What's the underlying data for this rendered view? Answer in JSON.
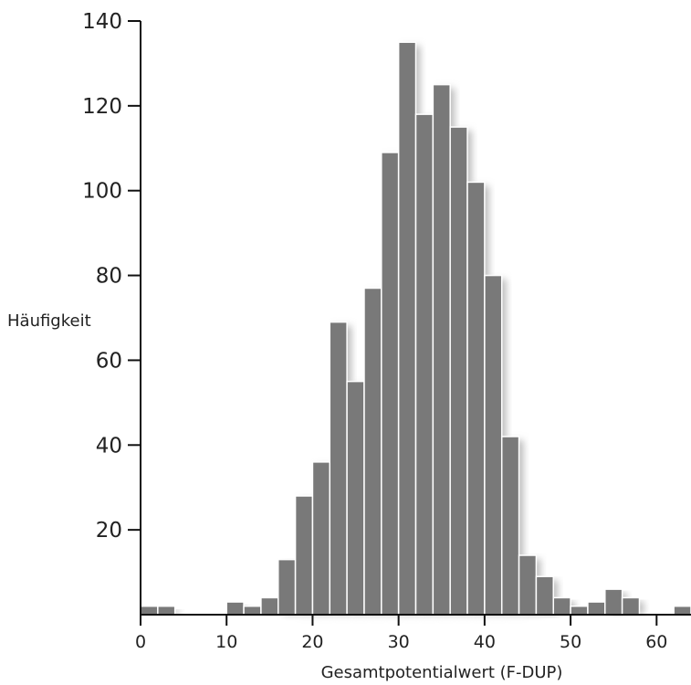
{
  "chart_data": {
    "type": "bar",
    "title": "",
    "xlabel": "Gesamtpotentialwert (F-DUP)",
    "ylabel": "Häufigkeit",
    "bin_width": 2,
    "bins": [
      {
        "x0": 0,
        "x1": 2,
        "count": 2
      },
      {
        "x0": 2,
        "x1": 4,
        "count": 2
      },
      {
        "x0": 10,
        "x1": 12,
        "count": 3
      },
      {
        "x0": 12,
        "x1": 14,
        "count": 2
      },
      {
        "x0": 14,
        "x1": 16,
        "count": 4
      },
      {
        "x0": 16,
        "x1": 18,
        "count": 13
      },
      {
        "x0": 18,
        "x1": 20,
        "count": 28
      },
      {
        "x0": 20,
        "x1": 22,
        "count": 36
      },
      {
        "x0": 22,
        "x1": 24,
        "count": 69
      },
      {
        "x0": 24,
        "x1": 26,
        "count": 55
      },
      {
        "x0": 26,
        "x1": 28,
        "count": 77
      },
      {
        "x0": 28,
        "x1": 30,
        "count": 109
      },
      {
        "x0": 30,
        "x1": 32,
        "count": 135
      },
      {
        "x0": 32,
        "x1": 34,
        "count": 118
      },
      {
        "x0": 34,
        "x1": 36,
        "count": 125
      },
      {
        "x0": 36,
        "x1": 38,
        "count": 115
      },
      {
        "x0": 38,
        "x1": 40,
        "count": 102
      },
      {
        "x0": 40,
        "x1": 42,
        "count": 80
      },
      {
        "x0": 42,
        "x1": 44,
        "count": 42
      },
      {
        "x0": 44,
        "x1": 46,
        "count": 14
      },
      {
        "x0": 46,
        "x1": 48,
        "count": 9
      },
      {
        "x0": 48,
        "x1": 50,
        "count": 4
      },
      {
        "x0": 50,
        "x1": 52,
        "count": 2
      },
      {
        "x0": 52,
        "x1": 54,
        "count": 3
      },
      {
        "x0": 54,
        "x1": 56,
        "count": 6
      },
      {
        "x0": 56,
        "x1": 58,
        "count": 4
      },
      {
        "x0": 62,
        "x1": 64,
        "count": 2
      }
    ],
    "x_ticks": [
      "0",
      "10",
      "20",
      "30",
      "40",
      "50",
      "60"
    ],
    "y_ticks": [
      "20",
      "40",
      "60",
      "80",
      "100",
      "120",
      "140"
    ],
    "xlim": [
      0,
      64
    ],
    "ylim": [
      0,
      140
    ],
    "grid": false,
    "legend": "none",
    "bar_color": "#797979",
    "bar_edge_color": "#ffffff",
    "shadow_color": "#bdbdbd"
  }
}
